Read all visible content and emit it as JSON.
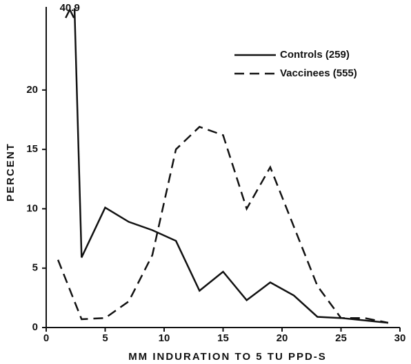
{
  "chart_data": {
    "type": "line",
    "xlabel": "MM INDURATION TO 5 TU PPD-S",
    "ylabel": "PERCENT",
    "xlim": [
      0,
      30
    ],
    "xticks": [
      0,
      5,
      10,
      15,
      20,
      25,
      30
    ],
    "ylim": [
      0,
      27
    ],
    "yticks": [
      0,
      5,
      10,
      15,
      20
    ],
    "legend": "upper right",
    "series": [
      {
        "name": "Controls (259)",
        "color": "#111111",
        "dash": "solid",
        "x": [
          2,
          3,
          5,
          7,
          9,
          11,
          13,
          15,
          17,
          19,
          21,
          23,
          25,
          27,
          29
        ],
        "values": [
          40.9,
          5.9,
          10.1,
          8.9,
          8.2,
          7.3,
          3.1,
          4.7,
          2.3,
          3.8,
          2.7,
          0.9,
          0.8,
          0.6,
          0.4
        ]
      },
      {
        "name": "Vaccinees (555)",
        "color": "#111111",
        "dash": "dashed",
        "x": [
          1,
          3,
          5,
          7,
          9,
          11,
          13,
          15,
          17,
          19,
          21,
          23,
          25,
          27,
          29
        ],
        "values": [
          5.7,
          0.7,
          0.8,
          2.2,
          6.1,
          15.0,
          16.9,
          16.2,
          10.0,
          13.5,
          8.5,
          3.5,
          0.8,
          0.8,
          0.4
        ]
      }
    ]
  }
}
